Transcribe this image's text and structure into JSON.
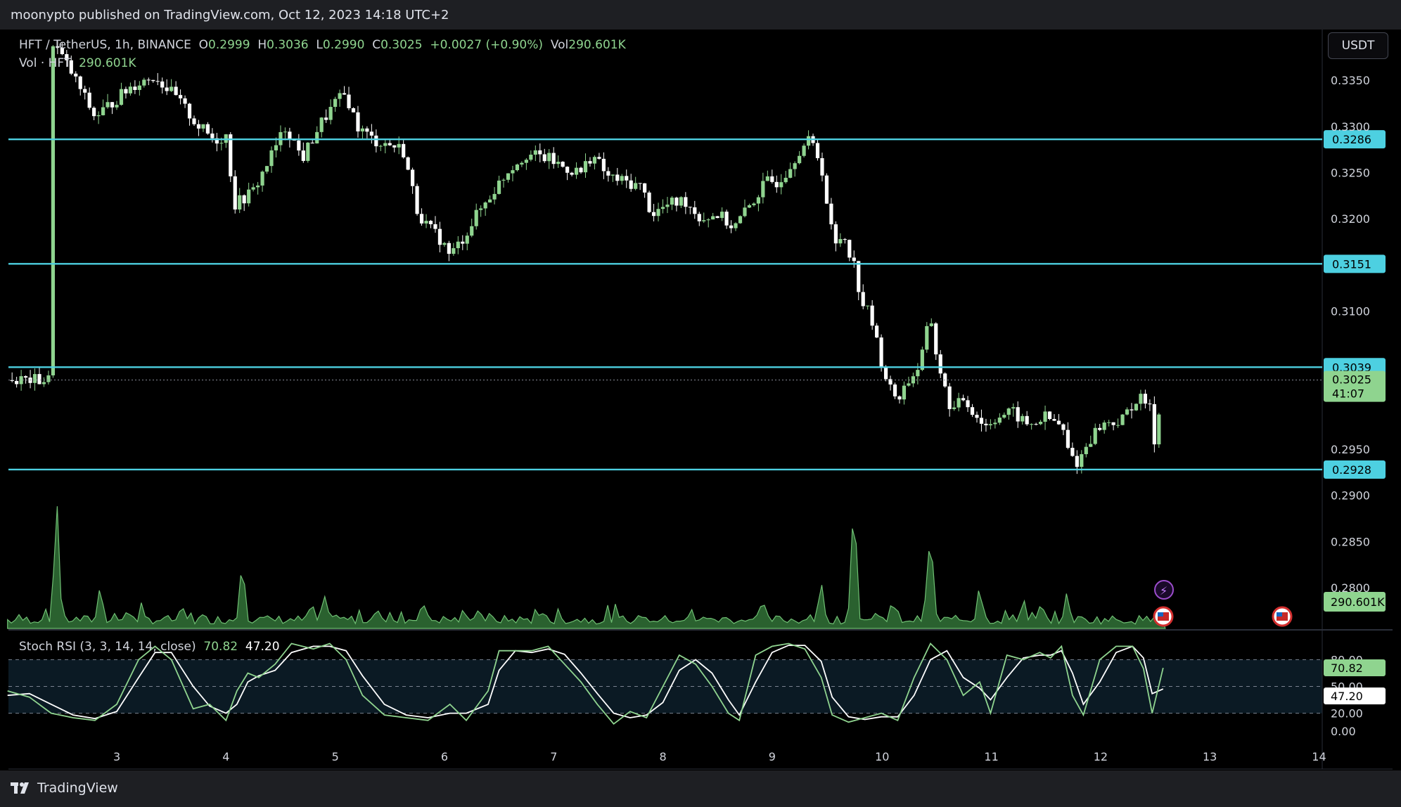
{
  "header": {
    "published": "moonypto published on TradingView.com, Oct 12, 2023 14:18 UTC+2"
  },
  "footer": {
    "brand": "TradingView"
  },
  "currency_button": "USDT",
  "legend": {
    "symbol": "HFT / TetherUS, 1h, BINANCE",
    "open_label": "O",
    "open": "0.2999",
    "high_label": "H",
    "high": "0.3036",
    "low_label": "L",
    "low": "0.2990",
    "close_label": "C",
    "close": "0.3025",
    "change": "+0.0027 (+0.90%)",
    "vol_label": "Vol",
    "vol": "290.601K",
    "vol_line": "Vol · HFT",
    "vol_value": "290.601K"
  },
  "stoch_legend": {
    "name": "Stoch RSI (3, 3, 14, 14, close)",
    "k": "70.82",
    "d": "47.20"
  },
  "colors": {
    "up": "#8fd48f",
    "down": "#ffffff",
    "level": "#4dd0e1",
    "volume": "#6fbf73"
  },
  "chart_data": {
    "type": "candlestick",
    "price_axis": {
      "ticks": [
        "0.3350",
        "0.3300",
        "0.3250",
        "0.3200",
        "0.3100",
        "0.2950",
        "0.2900",
        "0.2850",
        "0.2800"
      ],
      "range": [
        0.2755,
        0.3405
      ]
    },
    "x_axis": {
      "ticks": [
        "3",
        "4",
        "5",
        "6",
        "7",
        "8",
        "9",
        "10",
        "11",
        "12",
        "13",
        "14"
      ]
    },
    "levels": [
      {
        "label": "0.3286",
        "value": 0.3286
      },
      {
        "label": "0.3151",
        "value": 0.3151
      },
      {
        "label": "0.3039",
        "value": 0.3039
      },
      {
        "label": "0.2928",
        "value": 0.2928
      }
    ],
    "last_price": {
      "label": "0.3025",
      "countdown": "41:07",
      "value": 0.3025
    },
    "volume_last_label": "290.601K",
    "price_path": [
      [
        2.4,
        0.3395
      ],
      [
        2.6,
        0.3355
      ],
      [
        2.8,
        0.331
      ],
      [
        3.0,
        0.333
      ],
      [
        3.15,
        0.3345
      ],
      [
        3.35,
        0.3355
      ],
      [
        3.55,
        0.333
      ],
      [
        3.75,
        0.33
      ],
      [
        3.9,
        0.3285
      ],
      [
        4.0,
        0.329
      ],
      [
        4.08,
        0.3215
      ],
      [
        4.25,
        0.323
      ],
      [
        4.4,
        0.3265
      ],
      [
        4.55,
        0.33
      ],
      [
        4.7,
        0.3265
      ],
      [
        4.85,
        0.33
      ],
      [
        5.0,
        0.3325
      ],
      [
        5.1,
        0.3335
      ],
      [
        5.2,
        0.33
      ],
      [
        5.35,
        0.3285
      ],
      [
        5.5,
        0.328
      ],
      [
        5.62,
        0.3275
      ],
      [
        5.75,
        0.321
      ],
      [
        5.85,
        0.319
      ],
      [
        5.95,
        0.318
      ],
      [
        6.05,
        0.316
      ],
      [
        6.15,
        0.3175
      ],
      [
        6.3,
        0.3205
      ],
      [
        6.45,
        0.323
      ],
      [
        6.6,
        0.3255
      ],
      [
        6.75,
        0.327
      ],
      [
        6.95,
        0.3265
      ],
      [
        7.1,
        0.3255
      ],
      [
        7.25,
        0.325
      ],
      [
        7.35,
        0.327
      ],
      [
        7.5,
        0.3245
      ],
      [
        7.65,
        0.324
      ],
      [
        7.8,
        0.3235
      ],
      [
        7.9,
        0.3205
      ],
      [
        8.05,
        0.3215
      ],
      [
        8.2,
        0.322
      ],
      [
        8.35,
        0.32
      ],
      [
        8.5,
        0.3205
      ],
      [
        8.65,
        0.319
      ],
      [
        8.8,
        0.3215
      ],
      [
        8.95,
        0.324
      ],
      [
        9.05,
        0.324
      ],
      [
        9.15,
        0.3255
      ],
      [
        9.25,
        0.3275
      ],
      [
        9.35,
        0.3285
      ],
      [
        9.45,
        0.326
      ],
      [
        9.52,
        0.32
      ],
      [
        9.58,
        0.317
      ],
      [
        9.65,
        0.3185
      ],
      [
        9.75,
        0.315
      ],
      [
        9.82,
        0.311
      ],
      [
        9.9,
        0.3095
      ],
      [
        10.0,
        0.3045
      ],
      [
        10.08,
        0.3015
      ],
      [
        10.15,
        0.3005
      ],
      [
        10.25,
        0.3025
      ],
      [
        10.35,
        0.304
      ],
      [
        10.45,
        0.3095
      ],
      [
        10.5,
        0.3055
      ],
      [
        10.58,
        0.3015
      ],
      [
        10.65,
        0.299
      ],
      [
        10.75,
        0.3005
      ],
      [
        10.85,
        0.299
      ],
      [
        10.95,
        0.2975
      ],
      [
        11.05,
        0.2985
      ],
      [
        11.2,
        0.299
      ],
      [
        11.35,
        0.2975
      ],
      [
        11.5,
        0.2985
      ],
      [
        11.65,
        0.2975
      ],
      [
        11.72,
        0.2945
      ],
      [
        11.8,
        0.2935
      ],
      [
        11.9,
        0.296
      ],
      [
        12.0,
        0.2975
      ],
      [
        12.1,
        0.298
      ],
      [
        12.2,
        0.298
      ],
      [
        12.3,
        0.3
      ],
      [
        12.4,
        0.3005
      ],
      [
        12.47,
        0.299
      ],
      [
        12.5,
        0.296
      ],
      [
        12.55,
        0.2995
      ],
      [
        12.58,
        0.3025
      ]
    ],
    "volume_peaks": [
      [
        2.45,
        0.85
      ],
      [
        2.85,
        0.28
      ],
      [
        3.1,
        0.12
      ],
      [
        3.6,
        0.14
      ],
      [
        4.15,
        0.45
      ],
      [
        4.9,
        0.22
      ],
      [
        5.4,
        0.12
      ],
      [
        5.8,
        0.18
      ],
      [
        6.3,
        0.12
      ],
      [
        6.9,
        0.1
      ],
      [
        7.8,
        0.08
      ],
      [
        8.9,
        0.15
      ],
      [
        9.45,
        0.3
      ],
      [
        9.75,
        0.86
      ],
      [
        10.1,
        0.18
      ],
      [
        10.45,
        0.66
      ],
      [
        10.9,
        0.28
      ],
      [
        11.3,
        0.2
      ],
      [
        11.7,
        0.24
      ],
      [
        12.55,
        0.08
      ]
    ],
    "stoch": {
      "axis_ticks": [
        "80.00",
        "50.00",
        "20.00",
        "0.00"
      ],
      "k_label": "70.82",
      "d_label": "47.20",
      "k": [
        [
          2.0,
          45
        ],
        [
          2.2,
          38
        ],
        [
          2.4,
          20
        ],
        [
          2.6,
          15
        ],
        [
          2.8,
          12
        ],
        [
          3.0,
          30
        ],
        [
          3.2,
          80
        ],
        [
          3.35,
          95
        ],
        [
          3.5,
          80
        ],
        [
          3.7,
          25
        ],
        [
          3.85,
          30
        ],
        [
          4.0,
          12
        ],
        [
          4.1,
          45
        ],
        [
          4.2,
          65
        ],
        [
          4.3,
          60
        ],
        [
          4.45,
          75
        ],
        [
          4.6,
          98
        ],
        [
          4.8,
          92
        ],
        [
          4.95,
          98
        ],
        [
          5.1,
          80
        ],
        [
          5.25,
          40
        ],
        [
          5.45,
          18
        ],
        [
          5.65,
          15
        ],
        [
          5.85,
          12
        ],
        [
          6.05,
          30
        ],
        [
          6.2,
          12
        ],
        [
          6.4,
          45
        ],
        [
          6.5,
          90
        ],
        [
          6.65,
          90
        ],
        [
          6.8,
          90
        ],
        [
          6.95,
          95
        ],
        [
          7.1,
          75
        ],
        [
          7.25,
          55
        ],
        [
          7.4,
          30
        ],
        [
          7.55,
          8
        ],
        [
          7.7,
          22
        ],
        [
          7.85,
          15
        ],
        [
          8.0,
          50
        ],
        [
          8.15,
          85
        ],
        [
          8.3,
          75
        ],
        [
          8.45,
          50
        ],
        [
          8.6,
          20
        ],
        [
          8.7,
          12
        ],
        [
          8.85,
          85
        ],
        [
          9.0,
          95
        ],
        [
          9.15,
          98
        ],
        [
          9.3,
          92
        ],
        [
          9.45,
          60
        ],
        [
          9.55,
          18
        ],
        [
          9.7,
          10
        ],
        [
          9.85,
          15
        ],
        [
          10.0,
          20
        ],
        [
          10.15,
          12
        ],
        [
          10.3,
          60
        ],
        [
          10.45,
          98
        ],
        [
          10.6,
          80
        ],
        [
          10.75,
          40
        ],
        [
          10.9,
          55
        ],
        [
          11.0,
          20
        ],
        [
          11.15,
          85
        ],
        [
          11.3,
          80
        ],
        [
          11.45,
          88
        ],
        [
          11.55,
          82
        ],
        [
          11.65,
          95
        ],
        [
          11.75,
          40
        ],
        [
          11.85,
          18
        ],
        [
          12.0,
          80
        ],
        [
          12.15,
          95
        ],
        [
          12.3,
          95
        ],
        [
          12.4,
          70
        ],
        [
          12.48,
          20
        ],
        [
          12.58,
          70.82
        ]
      ],
      "d": [
        [
          2.0,
          40
        ],
        [
          2.2,
          42
        ],
        [
          2.4,
          30
        ],
        [
          2.6,
          18
        ],
        [
          2.8,
          14
        ],
        [
          3.0,
          22
        ],
        [
          3.2,
          60
        ],
        [
          3.35,
          88
        ],
        [
          3.5,
          88
        ],
        [
          3.7,
          50
        ],
        [
          3.85,
          28
        ],
        [
          4.0,
          20
        ],
        [
          4.1,
          30
        ],
        [
          4.2,
          55
        ],
        [
          4.3,
          62
        ],
        [
          4.45,
          68
        ],
        [
          4.6,
          88
        ],
        [
          4.8,
          95
        ],
        [
          4.95,
          95
        ],
        [
          5.1,
          90
        ],
        [
          5.25,
          62
        ],
        [
          5.45,
          30
        ],
        [
          5.65,
          18
        ],
        [
          5.85,
          15
        ],
        [
          6.05,
          20
        ],
        [
          6.2,
          20
        ],
        [
          6.4,
          30
        ],
        [
          6.5,
          68
        ],
        [
          6.65,
          90
        ],
        [
          6.8,
          88
        ],
        [
          6.95,
          92
        ],
        [
          7.1,
          86
        ],
        [
          7.25,
          65
        ],
        [
          7.4,
          42
        ],
        [
          7.55,
          20
        ],
        [
          7.7,
          15
        ],
        [
          7.85,
          18
        ],
        [
          8.0,
          32
        ],
        [
          8.15,
          68
        ],
        [
          8.3,
          80
        ],
        [
          8.45,
          65
        ],
        [
          8.6,
          35
        ],
        [
          8.7,
          18
        ],
        [
          8.85,
          55
        ],
        [
          9.0,
          88
        ],
        [
          9.15,
          96
        ],
        [
          9.3,
          96
        ],
        [
          9.45,
          78
        ],
        [
          9.55,
          38
        ],
        [
          9.7,
          16
        ],
        [
          9.85,
          13
        ],
        [
          10.0,
          16
        ],
        [
          10.15,
          16
        ],
        [
          10.3,
          40
        ],
        [
          10.45,
          80
        ],
        [
          10.6,
          90
        ],
        [
          10.75,
          60
        ],
        [
          10.9,
          48
        ],
        [
          11.0,
          35
        ],
        [
          11.15,
          60
        ],
        [
          11.3,
          82
        ],
        [
          11.45,
          85
        ],
        [
          11.55,
          85
        ],
        [
          11.65,
          90
        ],
        [
          11.75,
          65
        ],
        [
          11.85,
          30
        ],
        [
          12.0,
          55
        ],
        [
          12.15,
          88
        ],
        [
          12.3,
          95
        ],
        [
          12.4,
          82
        ],
        [
          12.48,
          42
        ],
        [
          12.58,
          47.2
        ]
      ]
    }
  }
}
